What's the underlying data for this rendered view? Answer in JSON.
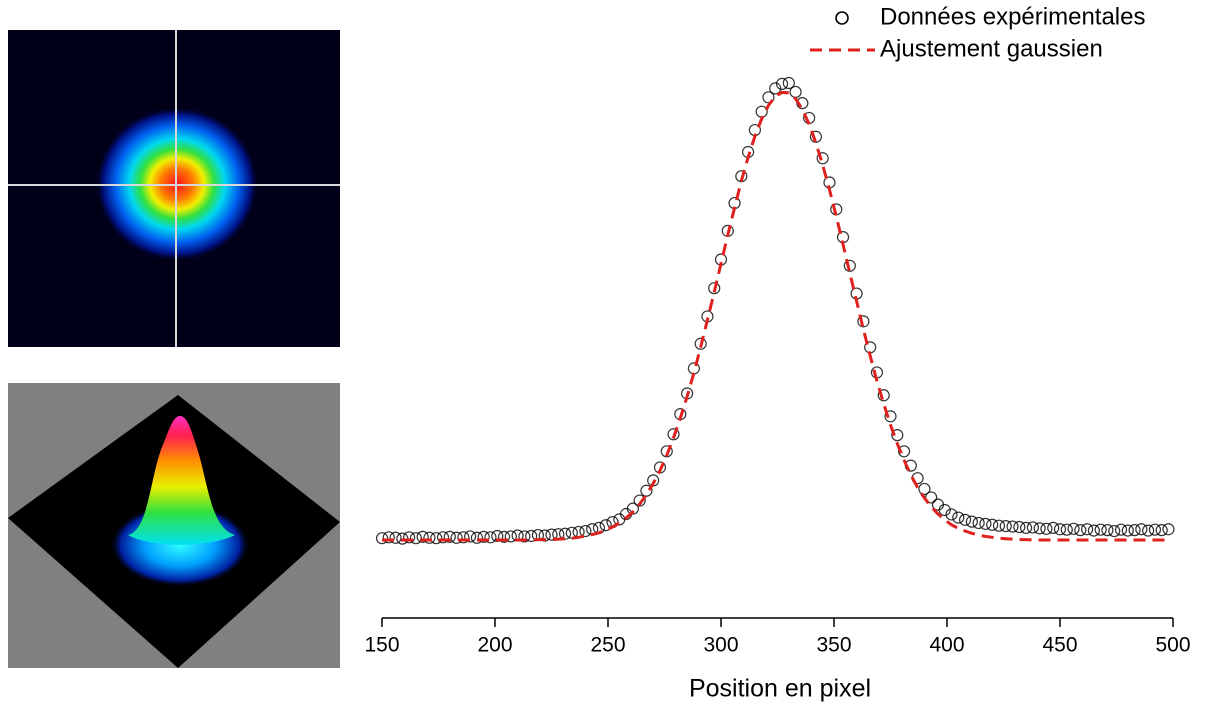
{
  "chart_data": {
    "type": "scatter",
    "x_label": "Position en pixel",
    "xlim": [
      150,
      500
    ],
    "xticks": [
      150,
      200,
      250,
      300,
      350,
      400,
      450,
      500
    ],
    "legend": "top-right",
    "x": [
      150,
      153,
      156,
      159,
      162,
      165,
      168,
      171,
      174,
      177,
      180,
      183,
      186,
      189,
      192,
      195,
      198,
      201,
      204,
      207,
      210,
      213,
      216,
      219,
      222,
      225,
      228,
      231,
      234,
      237,
      240,
      243,
      246,
      249,
      252,
      255,
      258,
      261,
      264,
      267,
      270,
      273,
      276,
      279,
      282,
      285,
      288,
      291,
      294,
      297,
      300,
      303,
      306,
      309,
      312,
      315,
      318,
      321,
      324,
      327,
      330,
      333,
      336,
      339,
      342,
      345,
      348,
      351,
      354,
      357,
      360,
      363,
      366,
      369,
      372,
      375,
      378,
      381,
      384,
      387,
      390,
      393,
      396,
      399,
      402,
      405,
      408,
      411,
      414,
      417,
      420,
      423,
      426,
      429,
      432,
      435,
      438,
      441,
      444,
      447,
      450,
      453,
      456,
      459,
      462,
      465,
      468,
      471,
      474,
      477,
      480,
      483,
      486,
      489,
      492,
      495,
      498
    ],
    "series": [
      {
        "name": "Données expérimentales",
        "color": "#000000",
        "marker": "open-circle",
        "values": [
          0.004,
          0.006,
          0.005,
          0.003,
          0.006,
          0.004,
          0.007,
          0.005,
          0.004,
          0.006,
          0.007,
          0.005,
          0.006,
          0.008,
          0.005,
          0.007,
          0.006,
          0.009,
          0.007,
          0.008,
          0.01,
          0.008,
          0.009,
          0.011,
          0.01,
          0.012,
          0.013,
          0.014,
          0.016,
          0.018,
          0.02,
          0.024,
          0.027,
          0.033,
          0.04,
          0.046,
          0.058,
          0.07,
          0.088,
          0.11,
          0.133,
          0.162,
          0.198,
          0.236,
          0.281,
          0.327,
          0.383,
          0.438,
          0.499,
          0.562,
          0.626,
          0.69,
          0.752,
          0.812,
          0.866,
          0.915,
          0.956,
          0.988,
          1.008,
          1.018,
          1.02,
          1.0,
          0.975,
          0.942,
          0.9,
          0.852,
          0.798,
          0.738,
          0.676,
          0.612,
          0.55,
          0.488,
          0.43,
          0.374,
          0.323,
          0.276,
          0.234,
          0.198,
          0.166,
          0.138,
          0.114,
          0.095,
          0.079,
          0.067,
          0.057,
          0.05,
          0.045,
          0.041,
          0.038,
          0.036,
          0.034,
          0.032,
          0.031,
          0.03,
          0.029,
          0.027,
          0.028,
          0.026,
          0.025,
          0.027,
          0.024,
          0.023,
          0.025,
          0.022,
          0.024,
          0.021,
          0.023,
          0.022,
          0.02,
          0.023,
          0.021,
          0.022,
          0.024,
          0.021,
          0.023,
          0.022,
          0.024
        ]
      },
      {
        "name": "Ajustement gaussien",
        "color": "#e0201c",
        "line": "dashed",
        "values": [
          0,
          0,
          0,
          0,
          0,
          0,
          0,
          0,
          0,
          0,
          0,
          0,
          0,
          0,
          0,
          0,
          0,
          0,
          0,
          0,
          0,
          0,
          0,
          0.001,
          0.001,
          0.001,
          0.002,
          0.003,
          0.004,
          0.006,
          0.009,
          0.012,
          0.016,
          0.022,
          0.029,
          0.038,
          0.049,
          0.063,
          0.08,
          0.101,
          0.126,
          0.155,
          0.189,
          0.228,
          0.272,
          0.32,
          0.373,
          0.431,
          0.491,
          0.553,
          0.617,
          0.681,
          0.742,
          0.801,
          0.854,
          0.901,
          0.94,
          0.97,
          0.99,
          0.999,
          0.998,
          0.985,
          0.961,
          0.928,
          0.886,
          0.837,
          0.782,
          0.722,
          0.66,
          0.596,
          0.533,
          0.47,
          0.411,
          0.355,
          0.304,
          0.257,
          0.215,
          0.178,
          0.145,
          0.117,
          0.094,
          0.074,
          0.058,
          0.045,
          0.034,
          0.026,
          0.02,
          0.015,
          0.011,
          0.008,
          0.006,
          0.004,
          0.003,
          0.002,
          0.001,
          0.001,
          0,
          0,
          0,
          0,
          0,
          0,
          0,
          0,
          0,
          0,
          0,
          0,
          0,
          0,
          0,
          0,
          0,
          0,
          0,
          0,
          0
        ]
      }
    ]
  }
}
